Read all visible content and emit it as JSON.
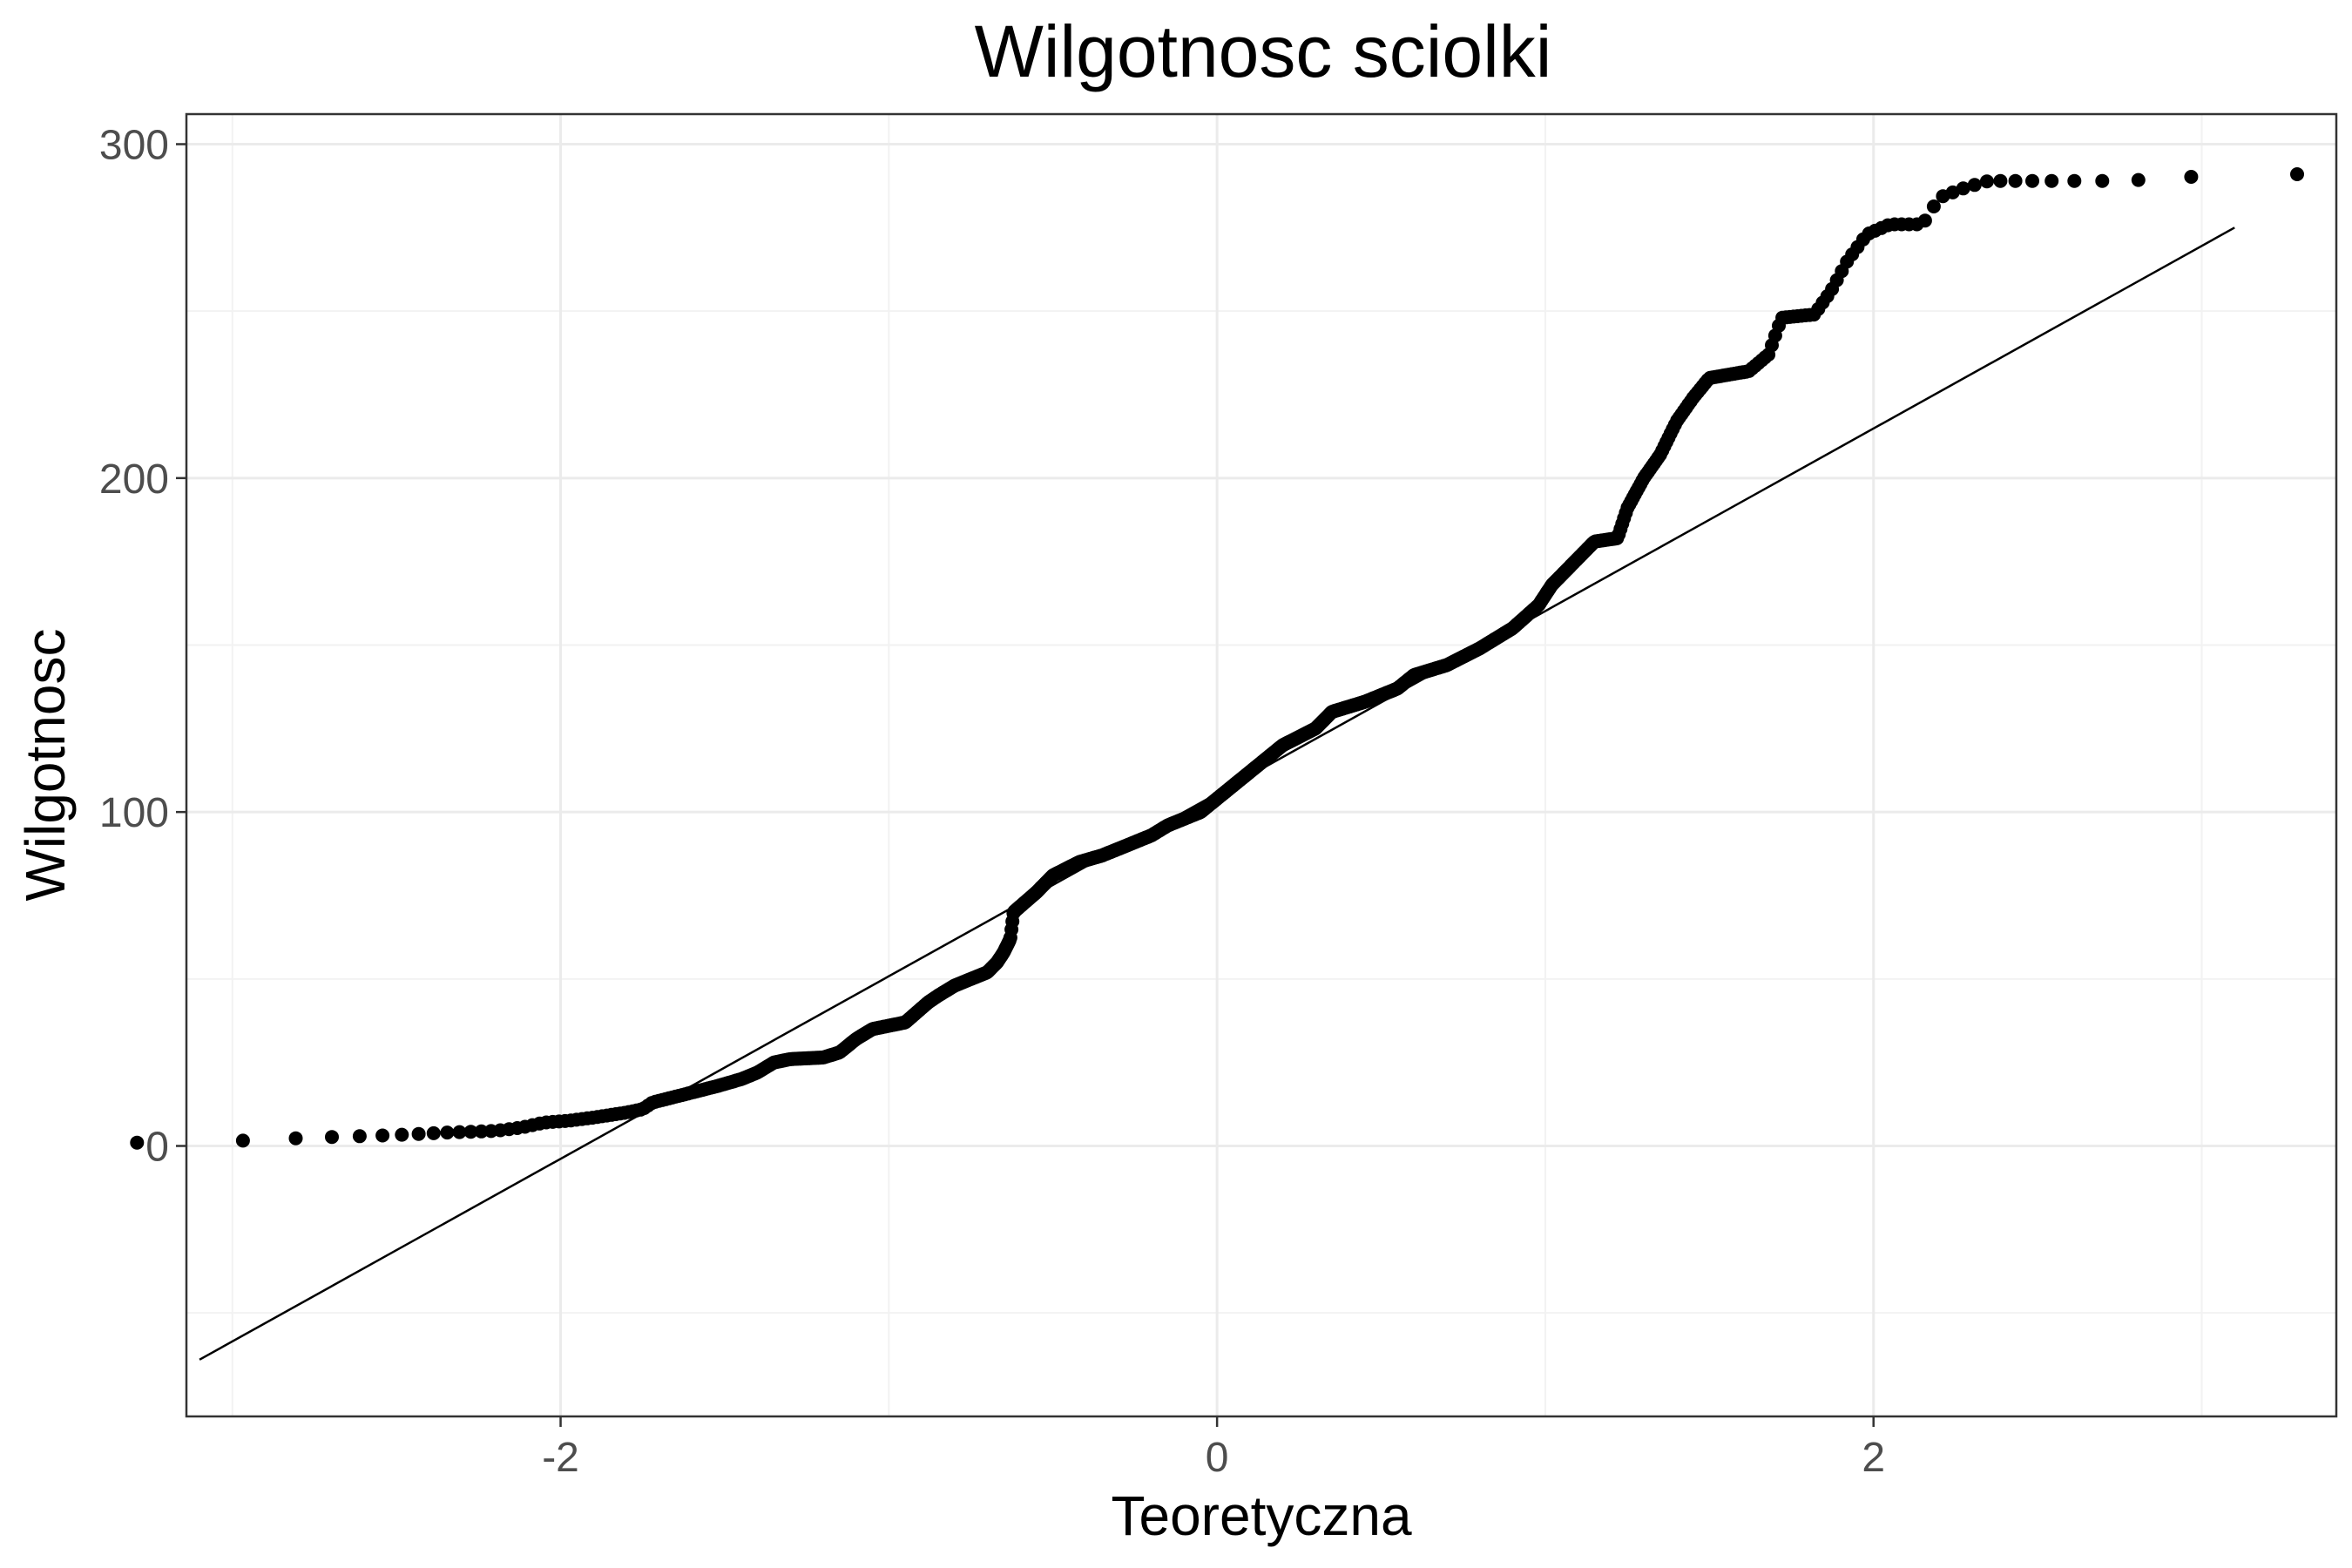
{
  "chart_data": {
    "type": "scatter",
    "subtype": "qq-plot",
    "title": "Wilgotnosc sciolki",
    "xlabel": "Teoretyczna",
    "ylabel": "Wilgotnosc",
    "xlim": [
      -3.14,
      3.41
    ],
    "ylim": [
      -81,
      309
    ],
    "x_major_ticks": [
      -2,
      0,
      2
    ],
    "x_minor_ticks": [
      -3,
      -1,
      1,
      3
    ],
    "y_major_ticks": [
      0,
      100,
      200,
      300
    ],
    "y_minor_ticks": [
      -50,
      50,
      150,
      250
    ],
    "x_tick_labels": [
      "-2",
      "0",
      "2"
    ],
    "y_tick_labels": [
      "0",
      "100",
      "200",
      "300"
    ],
    "grid": true,
    "reference_line": {
      "x": [
        -3.1,
        3.1
      ],
      "y": [
        -64,
        275
      ]
    },
    "anchors": [
      [
        -3.1,
        1
      ],
      [
        -2.76,
        2.5
      ],
      [
        -2.58,
        3
      ],
      [
        -2.45,
        3.5
      ],
      [
        -2.35,
        4
      ],
      [
        -2.2,
        4.5
      ],
      [
        -2.12,
        5.5
      ],
      [
        -2.05,
        7
      ],
      [
        -1.98,
        7.5
      ],
      [
        -1.9,
        8.5
      ],
      [
        -1.8,
        10
      ],
      [
        -1.75,
        11
      ],
      [
        -1.72,
        13
      ],
      [
        -1.6,
        16
      ],
      [
        -1.52,
        18
      ],
      [
        -1.45,
        20
      ],
      [
        -1.4,
        22
      ],
      [
        -1.35,
        25
      ],
      [
        -1.3,
        26
      ],
      [
        -1.2,
        26.5
      ],
      [
        -1.15,
        28
      ],
      [
        -1.1,
        32
      ],
      [
        -1.05,
        35
      ],
      [
        -0.95,
        37
      ],
      [
        -0.88,
        43
      ],
      [
        -0.85,
        45
      ],
      [
        -0.8,
        48
      ],
      [
        -0.75,
        50
      ],
      [
        -0.7,
        52
      ],
      [
        -0.67,
        55
      ],
      [
        -0.65,
        58
      ],
      [
        -0.63,
        62
      ],
      [
        -0.62,
        70
      ],
      [
        -0.55,
        76
      ],
      [
        -0.5,
        81
      ],
      [
        -0.42,
        85
      ],
      [
        -0.35,
        87
      ],
      [
        -0.2,
        93
      ],
      [
        -0.15,
        96
      ],
      [
        -0.05,
        100
      ],
      [
        0.0,
        104
      ],
      [
        0.05,
        108
      ],
      [
        0.1,
        112
      ],
      [
        0.15,
        116
      ],
      [
        0.2,
        120
      ],
      [
        0.3,
        125
      ],
      [
        0.35,
        130
      ],
      [
        0.45,
        133
      ],
      [
        0.55,
        137
      ],
      [
        0.6,
        141
      ],
      [
        0.7,
        144
      ],
      [
        0.8,
        149
      ],
      [
        0.9,
        155
      ],
      [
        0.98,
        162
      ],
      [
        1.02,
        168
      ],
      [
        1.08,
        174
      ],
      [
        1.15,
        181
      ],
      [
        1.22,
        182
      ],
      [
        1.25,
        191
      ],
      [
        1.3,
        200
      ],
      [
        1.35,
        207
      ],
      [
        1.4,
        217
      ],
      [
        1.45,
        224
      ],
      [
        1.5,
        230
      ],
      [
        1.62,
        232
      ],
      [
        1.68,
        237
      ],
      [
        1.72,
        248
      ],
      [
        1.82,
        249
      ],
      [
        1.87,
        256
      ],
      [
        1.92,
        265
      ],
      [
        1.98,
        273
      ],
      [
        2.05,
        276
      ],
      [
        2.15,
        276
      ],
      [
        2.2,
        284
      ],
      [
        2.28,
        287
      ],
      [
        2.35,
        289
      ],
      [
        2.45,
        289
      ],
      [
        2.58,
        289
      ],
      [
        2.76,
        289
      ],
      [
        3.1,
        291
      ]
    ]
  }
}
